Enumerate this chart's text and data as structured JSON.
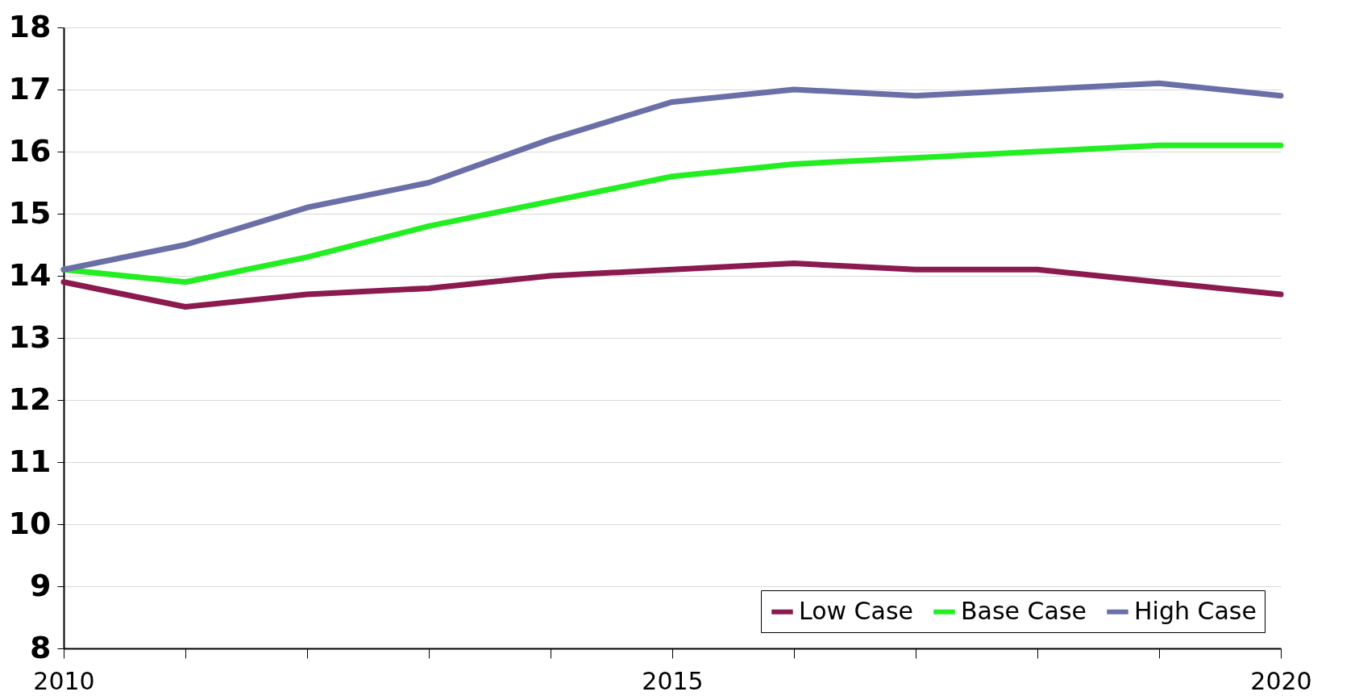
{
  "chart_data": {
    "type": "line",
    "x": [
      2010,
      2011,
      2012,
      2013,
      2014,
      2015,
      2016,
      2017,
      2018,
      2019,
      2020
    ],
    "xlim": [
      2010,
      2020
    ],
    "xticks": [
      2010,
      {
        "value": 2011,
        "label": null
      },
      {
        "value": 2012,
        "label": null
      },
      {
        "value": 2013,
        "label": null
      },
      {
        "value": 2014,
        "label": null
      },
      2015,
      {
        "value": 2016,
        "label": null
      },
      {
        "value": 2017,
        "label": null
      },
      {
        "value": 2018,
        "label": null
      },
      {
        "value": 2019,
        "label": null
      },
      2020
    ],
    "ylim": [
      8,
      18
    ],
    "yticks": [
      8,
      9,
      10,
      11,
      12,
      13,
      14,
      15,
      16,
      17,
      18
    ],
    "grid": "y",
    "legend": "bottom right",
    "line_style": "solid",
    "series": [
      {
        "name": "Low Case",
        "color": "#8b1a4f",
        "values": [
          13.9,
          13.5,
          13.7,
          13.8,
          14.0,
          14.1,
          14.2,
          14.1,
          14.1,
          13.9,
          13.7
        ]
      },
      {
        "name": "Base Case",
        "color": "#22ee22",
        "values": [
          14.1,
          13.9,
          14.3,
          14.8,
          15.2,
          15.6,
          15.8,
          15.9,
          16.0,
          16.1,
          16.1
        ]
      },
      {
        "name": "High Case",
        "color": "#6b6fa8",
        "values": [
          14.1,
          14.5,
          15.1,
          15.5,
          16.2,
          16.8,
          17.0,
          16.9,
          17.0,
          17.1,
          16.9
        ]
      }
    ]
  }
}
